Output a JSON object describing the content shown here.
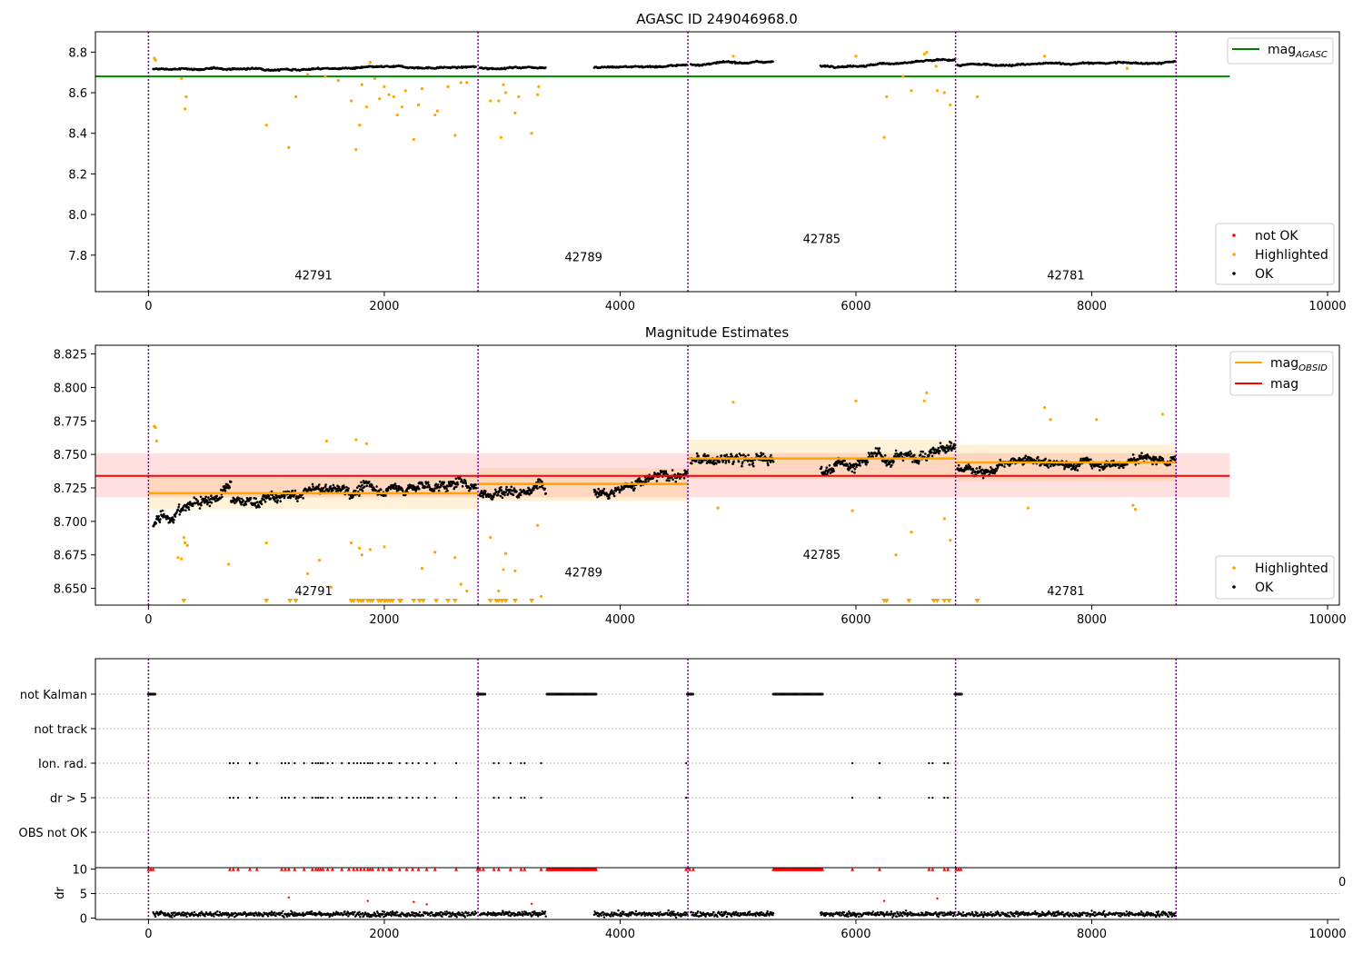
{
  "chart_data": [
    {
      "type": "scatter",
      "title": "AGASC ID 249046968.0",
      "xlim": [
        -450,
        10100
      ],
      "ylim": [
        7.62,
        8.9
      ],
      "xticks": [
        0,
        2000,
        4000,
        6000,
        8000,
        10000
      ],
      "xtick_labels": [
        "0",
        "2000",
        "4000",
        "6000",
        "8000",
        "10000"
      ],
      "yticks": [
        7.8,
        8.0,
        8.2,
        8.4,
        8.6,
        8.8
      ],
      "ytick_labels": [
        "7.8",
        "8.0",
        "8.2",
        "8.4",
        "8.6",
        "8.8"
      ],
      "mag_agasc": 8.68,
      "mag_agasc_xrange": [
        -450,
        9170
      ],
      "obs_boundaries": [
        0,
        2795,
        4575,
        6845,
        8715
      ],
      "obs_labels": [
        {
          "obsid": "42791",
          "x": 1400,
          "y": 7.68
        },
        {
          "obsid": "42789",
          "x": 3690,
          "y": 7.77
        },
        {
          "obsid": "42785",
          "x": 5710,
          "y": 7.86
        },
        {
          "obsid": "42781",
          "x": 7780,
          "y": 7.68
        }
      ],
      "segments": [
        {
          "x": [
            40,
            2780
          ],
          "level": [
            8.715,
            8.725
          ]
        },
        {
          "x": [
            2810,
            3370
          ],
          "level": [
            8.72,
            8.73
          ]
        },
        {
          "x": [
            3780,
            4570
          ],
          "level": [
            8.725,
            8.735
          ]
        },
        {
          "x": [
            4600,
            5300
          ],
          "level": [
            8.74,
            8.755
          ]
        },
        {
          "x": [
            5700,
            6840
          ],
          "level": [
            8.73,
            8.76
          ]
        },
        {
          "x": [
            6860,
            8710
          ],
          "level": [
            8.735,
            8.75
          ]
        }
      ],
      "highlighted_points": [
        [
          50,
          8.77
        ],
        [
          60,
          8.76
        ],
        [
          280,
          8.67
        ],
        [
          310,
          8.52
        ],
        [
          320,
          8.58
        ],
        [
          1000,
          8.44
        ],
        [
          1190,
          8.33
        ],
        [
          1250,
          8.58
        ],
        [
          1350,
          8.69
        ],
        [
          1500,
          8.68
        ],
        [
          1610,
          8.66
        ],
        [
          1720,
          8.56
        ],
        [
          1760,
          8.32
        ],
        [
          1790,
          8.44
        ],
        [
          1810,
          8.64
        ],
        [
          1850,
          8.53
        ],
        [
          1880,
          8.75
        ],
        [
          1920,
          8.67
        ],
        [
          1960,
          8.57
        ],
        [
          2000,
          8.63
        ],
        [
          2040,
          8.59
        ],
        [
          2080,
          8.58
        ],
        [
          2110,
          8.49
        ],
        [
          2150,
          8.53
        ],
        [
          2180,
          8.61
        ],
        [
          2250,
          8.37
        ],
        [
          2290,
          8.54
        ],
        [
          2320,
          8.62
        ],
        [
          2430,
          8.49
        ],
        [
          2450,
          8.51
        ],
        [
          2540,
          8.63
        ],
        [
          2600,
          8.39
        ],
        [
          2650,
          8.65
        ],
        [
          2700,
          8.65
        ],
        [
          2900,
          8.56
        ],
        [
          2970,
          8.56
        ],
        [
          2990,
          8.38
        ],
        [
          3010,
          8.64
        ],
        [
          3030,
          8.6
        ],
        [
          3110,
          8.5
        ],
        [
          3140,
          8.58
        ],
        [
          3250,
          8.4
        ],
        [
          3300,
          8.59
        ],
        [
          3310,
          8.63
        ],
        [
          4960,
          8.78
        ],
        [
          6000,
          8.78
        ],
        [
          6240,
          8.38
        ],
        [
          6260,
          8.58
        ],
        [
          6400,
          8.68
        ],
        [
          6470,
          8.61
        ],
        [
          6580,
          8.79
        ],
        [
          6600,
          8.8
        ],
        [
          6680,
          8.73
        ],
        [
          6690,
          8.61
        ],
        [
          6750,
          8.6
        ],
        [
          6800,
          8.54
        ],
        [
          7030,
          8.58
        ],
        [
          7600,
          8.78
        ],
        [
          8300,
          8.72
        ]
      ],
      "legend_lines": [
        {
          "label": "mag",
          "subscript": "AGASC",
          "color": "#008000"
        }
      ],
      "legend_points": [
        {
          "label": "not OK",
          "color": "#ff0000"
        },
        {
          "label": "Highlighted",
          "color": "#ffa500"
        },
        {
          "label": "OK",
          "color": "#000000"
        }
      ]
    },
    {
      "type": "scatter",
      "title": "Magnitude Estimates",
      "xlim": [
        -450,
        10100
      ],
      "ylim": [
        8.6375,
        8.8315
      ],
      "xticks": [
        0,
        2000,
        4000,
        6000,
        8000,
        10000
      ],
      "xtick_labels": [
        "0",
        "2000",
        "4000",
        "6000",
        "8000",
        "10000"
      ],
      "yticks": [
        8.65,
        8.675,
        8.7,
        8.725,
        8.75,
        8.775,
        8.8,
        8.825
      ],
      "ytick_labels": [
        "8.650",
        "8.675",
        "8.700",
        "8.725",
        "8.750",
        "8.775",
        "8.800",
        "8.825"
      ],
      "mag": 8.734,
      "mag_band": [
        8.718,
        8.751
      ],
      "mag_xrange": [
        -450,
        9170
      ],
      "obs_boundaries": [
        0,
        2795,
        4575,
        6845,
        8715
      ],
      "mag_obsid": [
        {
          "x": [
            0,
            2795
          ],
          "mag": 8.721,
          "band": [
            8.709,
            8.733
          ]
        },
        {
          "x": [
            2795,
            4575
          ],
          "mag": 8.728,
          "band": [
            8.715,
            8.74
          ]
        },
        {
          "x": [
            4575,
            6845
          ],
          "mag": 8.747,
          "band": [
            8.732,
            8.761
          ]
        },
        {
          "x": [
            6845,
            8715
          ],
          "mag": 8.744,
          "band": [
            8.73,
            8.757
          ]
        }
      ],
      "obs_labels": [
        {
          "obsid": "42791",
          "x": 1400,
          "y": 8.645
        },
        {
          "obsid": "42789",
          "x": 3690,
          "y": 8.659
        },
        {
          "obsid": "42785",
          "x": 5710,
          "y": 8.672
        },
        {
          "obsid": "42781",
          "x": 7780,
          "y": 8.645
        }
      ],
      "segments": [
        {
          "x": [
            40,
            700
          ],
          "level": [
            8.7,
            8.725
          ],
          "ampl": 0.012
        },
        {
          "x": [
            700,
            1300
          ],
          "level": [
            8.715,
            8.718
          ],
          "ampl": 0.011
        },
        {
          "x": [
            1300,
            2780
          ],
          "level": [
            8.722,
            8.728
          ],
          "ampl": 0.011
        },
        {
          "x": [
            2810,
            3370
          ],
          "level": [
            8.72,
            8.728
          ],
          "ampl": 0.012
        },
        {
          "x": [
            3780,
            4570
          ],
          "level": [
            8.725,
            8.735
          ],
          "ampl": 0.011
        },
        {
          "x": [
            4600,
            5300
          ],
          "level": [
            8.745,
            8.745
          ],
          "ampl": 0.012
        },
        {
          "x": [
            5700,
            6840
          ],
          "level": [
            8.74,
            8.755
          ],
          "ampl": 0.012
        },
        {
          "x": [
            6860,
            8710
          ],
          "level": [
            8.74,
            8.748
          ],
          "ampl": 0.01
        }
      ],
      "highlighted_points": [
        [
          50,
          8.771
        ],
        [
          60,
          8.77
        ],
        [
          70,
          8.76
        ],
        [
          250,
          8.673
        ],
        [
          280,
          8.672
        ],
        [
          300,
          8.688
        ],
        [
          310,
          8.684
        ],
        [
          330,
          8.682
        ],
        [
          680,
          8.668
        ],
        [
          1000,
          8.684
        ],
        [
          1350,
          8.661
        ],
        [
          1450,
          8.671
        ],
        [
          1510,
          8.76
        ],
        [
          1550,
          8.651
        ],
        [
          1720,
          8.684
        ],
        [
          1760,
          8.761
        ],
        [
          1790,
          8.68
        ],
        [
          1810,
          8.675
        ],
        [
          1850,
          8.758
        ],
        [
          1880,
          8.679
        ],
        [
          2000,
          8.681
        ],
        [
          2320,
          8.665
        ],
        [
          2430,
          8.677
        ],
        [
          2600,
          8.673
        ],
        [
          2650,
          8.653
        ],
        [
          2700,
          8.648
        ],
        [
          2900,
          8.688
        ],
        [
          2970,
          8.648
        ],
        [
          3010,
          8.664
        ],
        [
          3030,
          8.676
        ],
        [
          3110,
          8.663
        ],
        [
          3300,
          8.697
        ],
        [
          3330,
          8.644
        ],
        [
          4830,
          8.71
        ],
        [
          4960,
          8.789
        ],
        [
          5970,
          8.708
        ],
        [
          6000,
          8.79
        ],
        [
          6340,
          8.675
        ],
        [
          6470,
          8.692
        ],
        [
          6580,
          8.79
        ],
        [
          6600,
          8.796
        ],
        [
          6750,
          8.702
        ],
        [
          6800,
          8.686
        ],
        [
          7460,
          8.71
        ],
        [
          7600,
          8.785
        ],
        [
          7650,
          8.776
        ],
        [
          8040,
          8.776
        ],
        [
          8350,
          8.712
        ],
        [
          8370,
          8.709
        ],
        [
          8600,
          8.78
        ]
      ],
      "clipped_low_x": [
        300,
        1000,
        1200,
        1250,
        1720,
        1740,
        1780,
        1800,
        1820,
        1860,
        1880,
        1900,
        1950,
        1970,
        2000,
        2010,
        2030,
        2050,
        2070,
        2130,
        2140,
        2250,
        2300,
        2330,
        2440,
        2540,
        2600,
        2900,
        2950,
        2970,
        3000,
        3030,
        3110,
        3250,
        6240,
        6260,
        6450,
        6660,
        6690,
        6750,
        6790,
        7030
      ],
      "legend_lines": [
        {
          "label": "mag",
          "subscript": "OBSID",
          "color": "#ffa500"
        },
        {
          "label": "mag",
          "subscript": "",
          "color": "#ff0000"
        }
      ],
      "legend_points": [
        {
          "label": "Highlighted",
          "color": "#ffa500"
        },
        {
          "label": "OK",
          "color": "#000000"
        }
      ]
    },
    {
      "type": "scatter",
      "title": "",
      "xlim": [
        -450,
        10100
      ],
      "flag_rows": [
        "not Kalman",
        "not track",
        "Ion. rad.",
        "dr > 5",
        "OBS not OK"
      ],
      "flag_points": {
        "not Kalman": {
          "ranges": [
            [
              0,
              60
            ],
            [
              2790,
              2860
            ],
            [
              3380,
              3800
            ],
            [
              4570,
              4620
            ],
            [
              5300,
              5720
            ],
            [
              6840,
              6900
            ]
          ]
        },
        "not track": {
          "points": []
        },
        "Ion. rad.": {
          "points": [
            690,
            720,
            760,
            860,
            920,
            1130,
            1160,
            1190,
            1240,
            1320,
            1390,
            1420,
            1440,
            1460,
            1480,
            1520,
            1560,
            1640,
            1700,
            1740,
            1770,
            1800,
            1830,
            1860,
            1880,
            1900,
            1950,
            1990,
            2040,
            2060,
            2130,
            2190,
            2240,
            2290,
            2360,
            2430,
            2610,
            2930,
            2970,
            3070,
            3160,
            3190,
            3330,
            4560,
            5970,
            6200,
            6620,
            6650,
            6750,
            6780
          ]
        },
        "dr > 5": {
          "points": [
            690,
            720,
            760,
            860,
            920,
            1130,
            1160,
            1190,
            1240,
            1320,
            1390,
            1420,
            1440,
            1460,
            1480,
            1520,
            1560,
            1640,
            1700,
            1740,
            1770,
            1800,
            1830,
            1860,
            1880,
            1900,
            1950,
            1990,
            2040,
            2060,
            2130,
            2190,
            2240,
            2290,
            2360,
            2430,
            2610,
            2930,
            2970,
            3070,
            3160,
            3190,
            3330,
            4560,
            5970,
            6200,
            6620,
            6650,
            6750,
            6780
          ]
        },
        "OBS not OK": {
          "points": []
        }
      },
      "obs_boundaries": [
        0,
        2795,
        4575,
        6845,
        8715
      ]
    },
    {
      "type": "scatter",
      "title": "",
      "xlim": [
        -450,
        10100
      ],
      "ylim": [
        -0.3,
        10.3
      ],
      "xticks": [
        0,
        2000,
        4000,
        6000,
        8000,
        10000
      ],
      "xtick_labels": [
        "0",
        "2000",
        "4000",
        "6000",
        "8000",
        "10000"
      ],
      "yticks": [
        0,
        5,
        10
      ],
      "ytick_labels": [
        "0",
        "5",
        "10"
      ],
      "ylabel": "dr",
      "stray_tick_label": "0",
      "obs_boundaries": [
        0,
        2795,
        4575,
        6845,
        8715
      ],
      "ok_segments": [
        [
          40,
          2780
        ],
        [
          2810,
          3370
        ],
        [
          3780,
          4570
        ],
        [
          4600,
          5300
        ],
        [
          5700,
          6840
        ],
        [
          6860,
          8710
        ]
      ],
      "capped_x": [
        0,
        20,
        40,
        690,
        720,
        760,
        860,
        920,
        1130,
        1160,
        1190,
        1240,
        1320,
        1390,
        1420,
        1440,
        1460,
        1480,
        1520,
        1560,
        1640,
        1700,
        1740,
        1770,
        1800,
        1830,
        1860,
        1880,
        1900,
        1950,
        1990,
        2040,
        2060,
        2130,
        2190,
        2240,
        2290,
        2360,
        2430,
        2610,
        2790,
        2810,
        2840,
        2930,
        2970,
        3070,
        3160,
        3190,
        3330,
        4560,
        4590,
        4620,
        5970,
        6200,
        6620,
        6650,
        6750,
        6780,
        6850,
        6870,
        6890
      ],
      "capped_ranges": [
        [
          3380,
          3800
        ],
        [
          5300,
          5720
        ]
      ],
      "not_ok_points": [
        [
          1190,
          4.2
        ],
        [
          1860,
          3.5
        ],
        [
          2250,
          3.3
        ],
        [
          2360,
          2.8
        ],
        [
          3250,
          2.9
        ],
        [
          6240,
          3.5
        ],
        [
          6690,
          4.0
        ]
      ]
    }
  ]
}
